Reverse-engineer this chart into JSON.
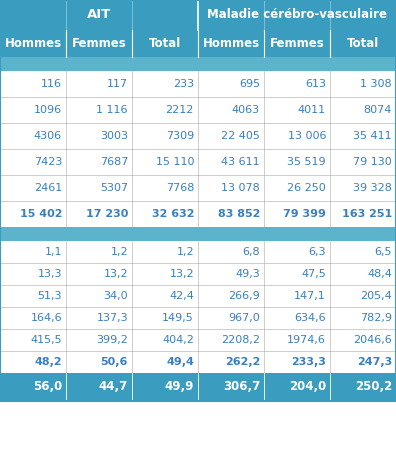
{
  "header1": [
    "AIT",
    "Maladie cérébro-vasculaire"
  ],
  "header2": [
    "Hommes",
    "Femmes",
    "Total",
    "Hommes",
    "Femmes",
    "Total"
  ],
  "count_rows": [
    [
      "116",
      "117",
      "233",
      "695",
      "613",
      "1 308"
    ],
    [
      "1096",
      "1 116",
      "2212",
      "4063",
      "4011",
      "8074"
    ],
    [
      "4306",
      "3003",
      "7309",
      "22 405",
      "13 006",
      "35 411"
    ],
    [
      "7423",
      "7687",
      "15 110",
      "43 611",
      "35 519",
      "79 130"
    ],
    [
      "2461",
      "5307",
      "7768",
      "13 078",
      "26 250",
      "39 328"
    ],
    [
      "15 402",
      "17 230",
      "32 632",
      "83 852",
      "79 399",
      "163 251"
    ]
  ],
  "rate_rows": [
    [
      "1,1",
      "1,2",
      "1,2",
      "6,8",
      "6,3",
      "6,5"
    ],
    [
      "13,3",
      "13,2",
      "13,2",
      "49,3",
      "47,5",
      "48,4"
    ],
    [
      "51,3",
      "34,0",
      "42,4",
      "266,9",
      "147,1",
      "205,4"
    ],
    [
      "164,6",
      "137,3",
      "149,5",
      "967,0",
      "634,6",
      "782,9"
    ],
    [
      "415,5",
      "399,2",
      "404,2",
      "2208,2",
      "1974,6",
      "2046,6"
    ],
    [
      "48,2",
      "50,6",
      "49,4",
      "262,2",
      "233,3",
      "247,3"
    ]
  ],
  "total_row": [
    "56,0",
    "44,7",
    "49,9",
    "306,7",
    "204,0",
    "250,2"
  ],
  "header_bg": "#3a9dbf",
  "separator_bg": "#5bb3cc",
  "white_bg": "#ffffff",
  "header_text_color": "#ffffff",
  "data_text_color": "#3a7fbf",
  "total_text_color": "#ffffff",
  "border_color": "#3a9dbf",
  "divider_color": "#aaaaaa"
}
